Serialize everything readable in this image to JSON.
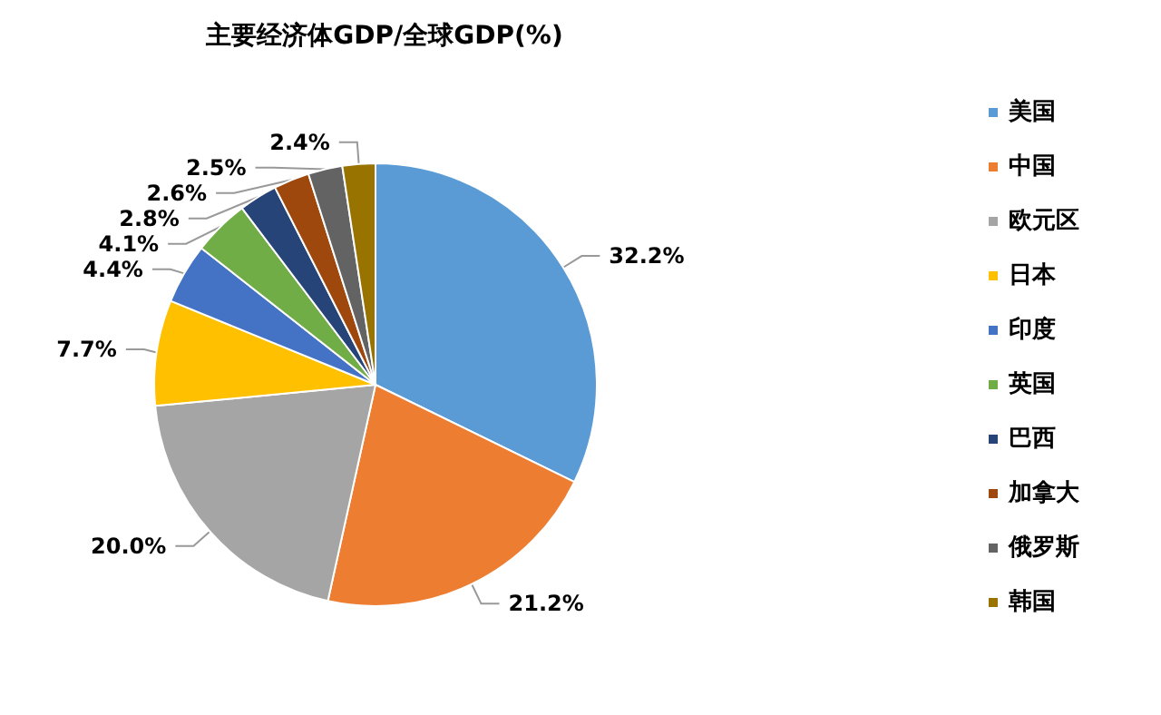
{
  "chart_data": {
    "type": "pie",
    "title": "主要经济体GDP/全球GDP(%)",
    "categories": [
      "美国",
      "中国",
      "欧元区",
      "日本",
      "印度",
      "英国",
      "巴西",
      "加拿大",
      "俄罗斯",
      "韩国"
    ],
    "values": [
      32.2,
      21.2,
      20.0,
      7.7,
      4.4,
      4.1,
      2.8,
      2.6,
      2.5,
      2.4
    ],
    "value_labels": [
      "32.2%",
      "21.2%",
      "20.0%",
      "7.7%",
      "4.4%",
      "4.1%",
      "2.8%",
      "2.6%",
      "2.5%",
      "2.4%"
    ],
    "colors": [
      "#5b9bd5",
      "#ed7d31",
      "#a5a5a5",
      "#ffc000",
      "#4472c4",
      "#70ad47",
      "#264478",
      "#9e480e",
      "#636363",
      "#997300"
    ],
    "legend": "right"
  }
}
